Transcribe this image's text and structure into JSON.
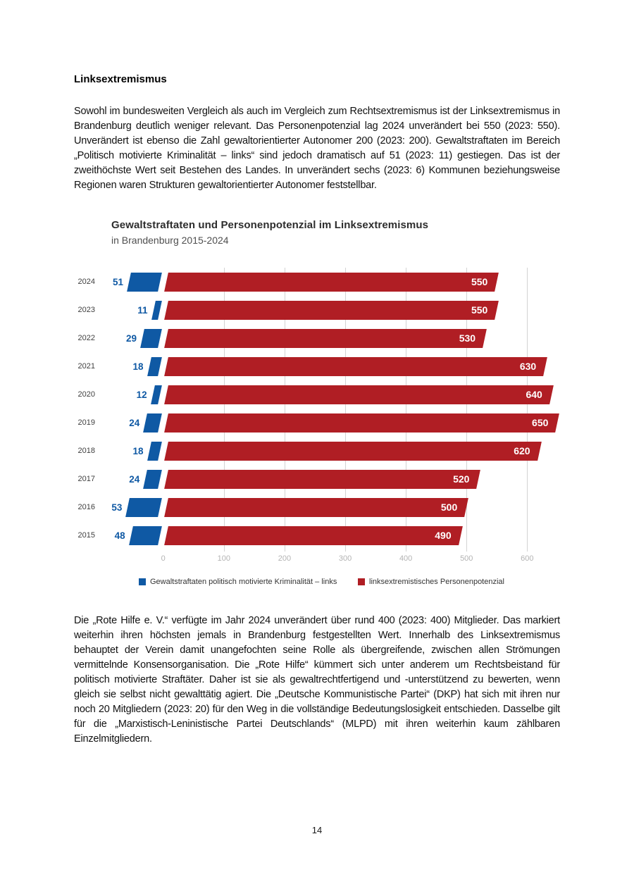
{
  "page": {
    "heading": "Linksextremismus",
    "paragraph_1": "Sowohl im bundesweiten Vergleich als auch im Vergleich zum Rechtsextremismus ist der Linksextremismus in Brandenburg deutlich weniger relevant. Das Personenpotenzial lag 2024 unverändert bei 550 (2023: 550). Unverändert ist ebenso die Zahl gewaltorientierter Autonomer 200 (2023: 200). Gewaltstraftaten im Bereich „Politisch motivierte Kriminalität – links“ sind jedoch dramatisch auf 51 (2023: 11) gestiegen. Das ist der zweithöchste Wert seit Bestehen des Landes. In unverändert sechs (2023: 6) Kommunen beziehungsweise Regionen waren Strukturen gewaltorientierter Autonomer feststellbar.",
    "paragraph_2": "Die „Rote Hilfe e. V.“ verfügte im Jahr 2024 unverändert über rund 400 (2023: 400) Mitglieder. Das markiert weiterhin ihren höchsten jemals in Brandenburg festgestellten Wert. Innerhalb des Linksextremismus behauptet der Verein damit unangefochten seine Rolle als übergreifende, zwischen allen Strömungen vermittelnde Konsensorganisation. Die „Rote Hilfe“ kümmert sich unter anderem um Rechtsbeistand für politisch motivierte Straftäter. Daher ist sie als gewaltrechtfertigend und -unterstützend zu bewerten, wenn gleich sie selbst nicht gewalttätig agiert. Die „Deutsche Kommunistische Partei“ (DKP) hat sich mit ihren nur noch 20 Mitgliedern (2023: 20) für den Weg in die vollständige Bedeutungslosigkeit entschieden. Dasselbe gilt für die „Marxistisch-Leninistische Partei Deutschlands“ (MLPD) mit ihren weiterhin kaum zählbaren Einzelmitgliedern.",
    "page_number": "14"
  },
  "chart_data": {
    "type": "bar",
    "orientation": "horizontal",
    "title": "Gewaltstraftaten und Personenpotenzial im Linksextremismus",
    "subtitle": "in Brandenburg 2015-2024",
    "categories": [
      "2024",
      "2023",
      "2022",
      "2021",
      "2020",
      "2019",
      "2018",
      "2017",
      "2016",
      "2015"
    ],
    "series": [
      {
        "name": "Gewaltstraftaten politisch motivierte Kriminalität – links",
        "color": "#0f59a4",
        "values": [
          51,
          11,
          29,
          18,
          12,
          24,
          18,
          24,
          53,
          48
        ]
      },
      {
        "name": "linksextremistisches Personenpotenzial",
        "color": "#b01e24",
        "values": [
          550,
          550,
          530,
          630,
          640,
          650,
          620,
          520,
          500,
          490
        ]
      }
    ],
    "x_ticks": [
      0,
      100,
      200,
      300,
      400,
      500,
      600
    ],
    "xlim": [
      0,
      670
    ],
    "grid": "vertical",
    "gridline_color": "#d3d3d3",
    "tick_label_color": "#b3b3b3",
    "legend_position": "bottom"
  }
}
